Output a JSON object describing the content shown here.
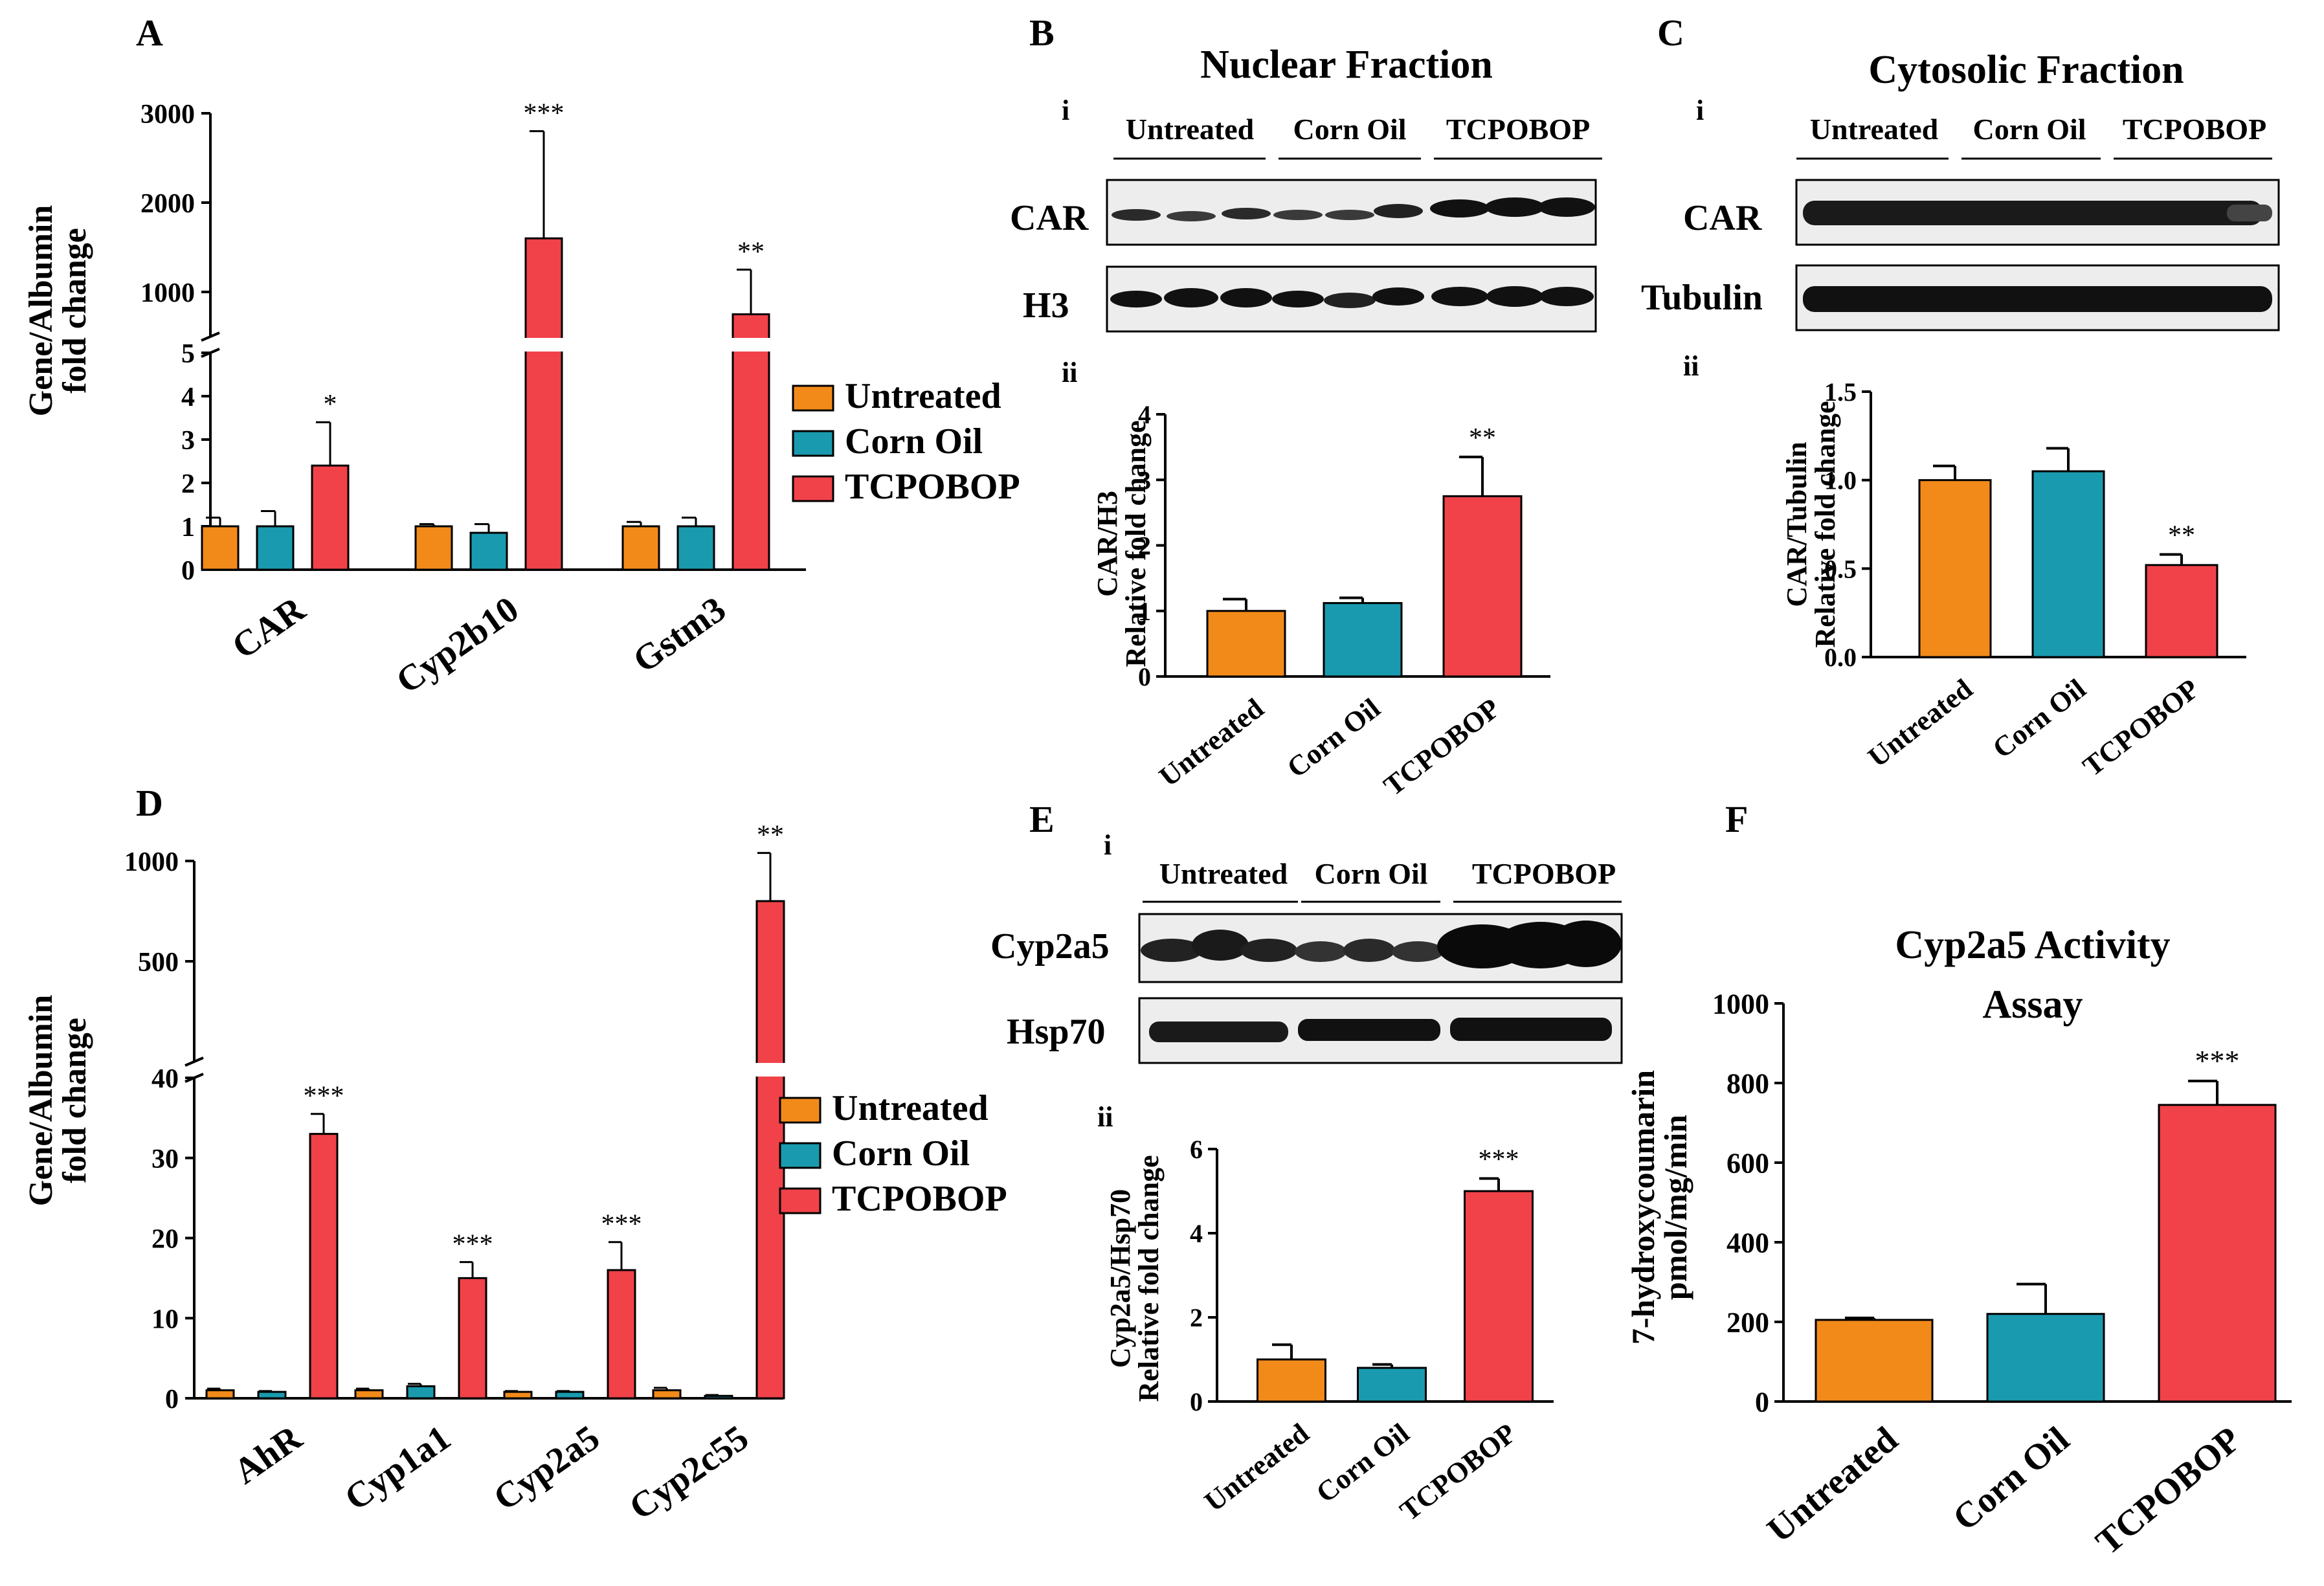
{
  "colors": {
    "untreated": "#F28A1A",
    "corn_oil": "#1A9AAE",
    "tcpobop": "#F04248",
    "axis": "#000000",
    "blot_bg": "#EDEDED",
    "blot_band": "#1A1A1A"
  },
  "groups": [
    "Untreated",
    "Corn Oil",
    "TCPOBOP"
  ],
  "legend": [
    "Untreated",
    "Corn Oil",
    "TCPOBOP"
  ],
  "panels": {
    "A": {
      "letter": "A"
    },
    "B": {
      "letter": "B",
      "title": "Nuclear Fraction",
      "sub_i": "i",
      "sub_ii": "ii",
      "blot_rows": [
        "CAR",
        "H3"
      ]
    },
    "C": {
      "letter": "C",
      "title": "Cytosolic Fraction",
      "sub_i": "i",
      "sub_ii": "ii",
      "blot_rows": [
        "CAR",
        "Tubulin"
      ]
    },
    "D": {
      "letter": "D"
    },
    "E": {
      "letter": "E",
      "sub_i": "i",
      "sub_ii": "ii",
      "blot_rows": [
        "Cyp2a5",
        "Hsp70"
      ]
    },
    "F": {
      "letter": "F"
    }
  },
  "chart_data": [
    {
      "id": "A",
      "type": "bar",
      "title": "",
      "ylabel": [
        "Gene/Albumin",
        "fold change"
      ],
      "categories": [
        "CAR",
        "Cyp2b10",
        "Gstm3"
      ],
      "broken_axis": {
        "lower_ylim": [
          0,
          5
        ],
        "upper_ylim": [
          500,
          3000
        ],
        "lower_ticks": [
          0,
          1,
          2,
          3,
          4,
          5
        ],
        "upper_ticks": [
          1000,
          2000,
          3000
        ]
      },
      "series": [
        {
          "name": "Untreated",
          "values": [
            1.0,
            1.0,
            1.0
          ],
          "errors": [
            0.2,
            0.05,
            0.1
          ]
        },
        {
          "name": "Corn Oil",
          "values": [
            1.0,
            0.85,
            1.0
          ],
          "errors": [
            0.35,
            0.2,
            0.2
          ]
        },
        {
          "name": "TCPOBOP",
          "values": [
            2.4,
            1600,
            750
          ],
          "errors": [
            1.0,
            1200,
            500
          ]
        }
      ],
      "significance": [
        "*",
        "***",
        "**"
      ],
      "legend_position": "right"
    },
    {
      "id": "B",
      "type": "bar",
      "title": "Nuclear Fraction",
      "ylabel": [
        "CAR/H3",
        "Relative fold change"
      ],
      "categories": [
        "Untreated",
        "Corn Oil",
        "TCPOBOP"
      ],
      "values": [
        1.0,
        1.12,
        2.75
      ],
      "errors": [
        0.18,
        0.08,
        0.6
      ],
      "significance": [
        "",
        "",
        "**"
      ],
      "ylim": [
        0,
        4
      ],
      "yticks": [
        0,
        1,
        2,
        3,
        4
      ]
    },
    {
      "id": "C",
      "type": "bar",
      "title": "Cytosolic Fraction",
      "ylabel": [
        "CAR/Tubulin",
        "Relative fold change"
      ],
      "categories": [
        "Untreated",
        "Corn Oil",
        "TCPOBOP"
      ],
      "values": [
        1.0,
        1.05,
        0.52
      ],
      "errors": [
        0.08,
        0.13,
        0.06
      ],
      "significance": [
        "",
        "",
        "**"
      ],
      "ylim": [
        0,
        1.5
      ],
      "yticks": [
        "0.0",
        "0.5",
        "1.0",
        "1.5"
      ]
    },
    {
      "id": "D",
      "type": "bar",
      "title": "",
      "ylabel": [
        "Gene/Albumin",
        "fold change"
      ],
      "categories": [
        "AhR",
        "Cyp1a1",
        "Cyp2a5",
        "Cyp2c55"
      ],
      "broken_axis": {
        "lower_ylim": [
          0,
          40
        ],
        "upper_ylim": [
          0,
          1000
        ],
        "lower_ticks": [
          0,
          10,
          20,
          30,
          40
        ],
        "upper_ticks": [
          500,
          1000
        ]
      },
      "series": [
        {
          "name": "Untreated",
          "values": [
            1.0,
            1.0,
            0.8,
            1.0
          ],
          "errors": [
            0.2,
            0.2,
            0.1,
            0.3
          ]
        },
        {
          "name": "Corn Oil",
          "values": [
            0.8,
            1.5,
            0.8,
            0.3
          ],
          "errors": [
            0.1,
            0.3,
            0.1,
            0.1
          ]
        },
        {
          "name": "TCPOBOP",
          "values": [
            33,
            15,
            16,
            800
          ],
          "errors": [
            2.5,
            2.0,
            3.5,
            240
          ]
        }
      ],
      "significance": [
        "***",
        "***",
        "***",
        "**"
      ],
      "legend_position": "right"
    },
    {
      "id": "E",
      "type": "bar",
      "title": "",
      "ylabel": [
        "Cyp2a5/Hsp70",
        "Relative fold change"
      ],
      "categories": [
        "Untreated",
        "Corn Oil",
        "TCPOBOP"
      ],
      "values": [
        1.0,
        0.8,
        5.0
      ],
      "errors": [
        0.35,
        0.08,
        0.3
      ],
      "significance": [
        "",
        "",
        "***"
      ],
      "ylim": [
        0,
        6
      ],
      "yticks": [
        0,
        2,
        4,
        6
      ]
    },
    {
      "id": "F",
      "type": "bar",
      "title": [
        "Cyp2a5 Activity",
        "Assay"
      ],
      "ylabel": [
        "7-hydroxycoumarin",
        "pmol/mg/min"
      ],
      "categories": [
        "Untreated",
        "Corn Oil",
        "TCPOBOP"
      ],
      "values": [
        205,
        220,
        745
      ],
      "errors": [
        5,
        75,
        60
      ],
      "significance": [
        "",
        "",
        "***"
      ],
      "ylim": [
        0,
        1000
      ],
      "yticks": [
        0,
        200,
        400,
        600,
        800,
        1000
      ]
    }
  ]
}
